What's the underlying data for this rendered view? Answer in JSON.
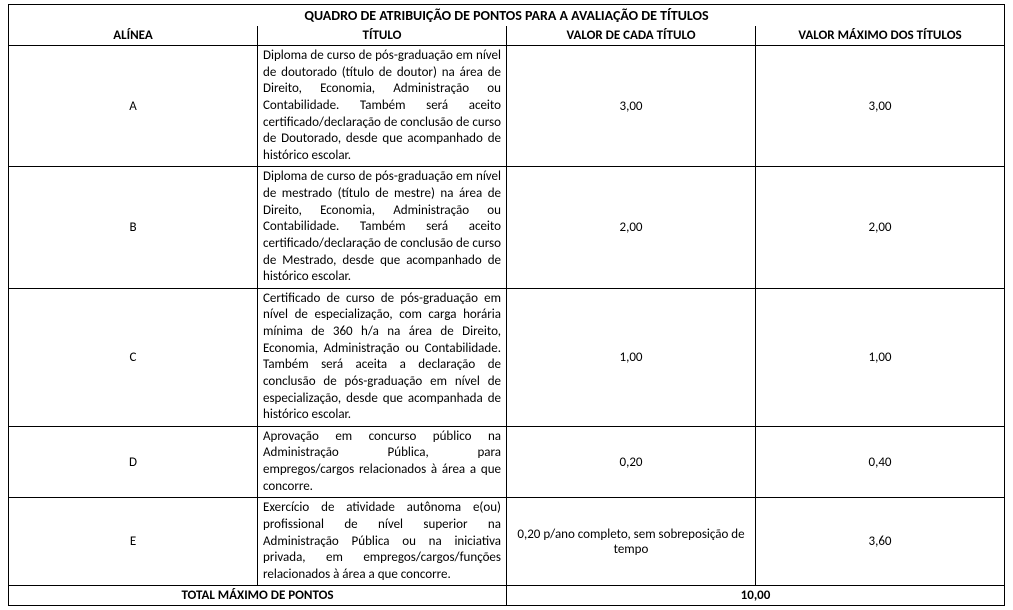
{
  "caption": "QUADRO DE ATRIBUIÇÃO DE PONTOS PARA A AVALIAÇÃO DE TÍTULOS",
  "headers": {
    "alinea": "ALÍNEA",
    "titulo": "TÍTULO",
    "valor": "VALOR DE CADA TÍTULO",
    "max": "VALOR MÁXIMO DOS TÍTULOS"
  },
  "rows": [
    {
      "alinea": "A",
      "titulo": "Diploma de curso de pós-graduação em nível de doutorado (título de doutor) na área de Direito, Economia, Administração ou Contabilidade. Também será aceito certificado/declaração de conclusão de curso de Doutorado, desde que acompanhado de histórico escolar.",
      "valor": "3,00",
      "max": "3,00"
    },
    {
      "alinea": "B",
      "titulo": "Diploma de curso de pós-graduação em nível de mestrado (título de mestre) na área de Direito, Economia, Administração ou Contabilidade. Também será aceito certificado/declaração de conclusão de curso de Mestrado, desde que acompanhado de histórico escolar.",
      "valor": "2,00",
      "max": "2,00"
    },
    {
      "alinea": "C",
      "titulo": "Certificado de curso de pós-graduação em nível de especialização, com carga horária mínima de 360 h/a na área de Direito, Economia, Administração ou Contabilidade. Também será aceita a declaração de conclusão de pós-graduação em nível de especialização, desde que acompanhada de histórico escolar.",
      "valor": "1,00",
      "max": "1,00"
    },
    {
      "alinea": "D",
      "titulo": "Aprovação em concurso público na Administração Pública, para empregos/cargos relacionados à área a que concorre.",
      "valor": "0,20",
      "max": "0,40"
    },
    {
      "alinea": "E",
      "titulo": "Exercício de atividade autônoma e(ou) profissional de nível superior na Administração Pública ou na iniciativa privada, em empregos/cargos/funções relacionados à área a que concorre.",
      "valor": "0,20 p/ano completo, sem sobreposição de tempo",
      "max": "3,60"
    }
  ],
  "total": {
    "label": "TOTAL MÁXIMO DE PONTOS",
    "value": "10,00"
  }
}
